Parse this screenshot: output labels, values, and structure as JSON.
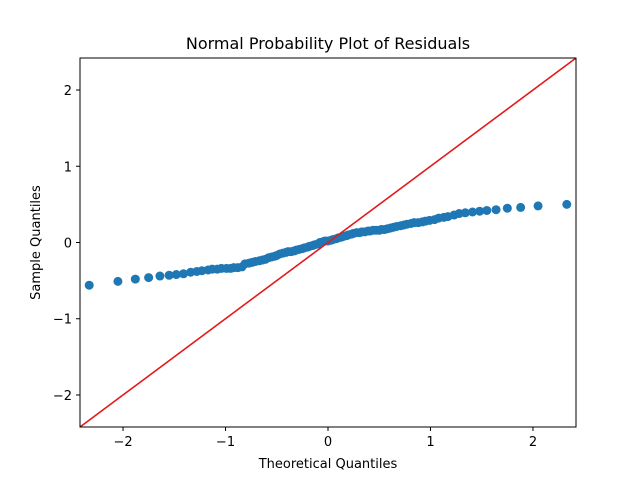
{
  "chart_data": {
    "type": "scatter",
    "title": "Normal Probability Plot of Residuals",
    "xlabel": "Theoretical Quantiles",
    "ylabel": "Sample Quantiles",
    "xlim": [
      -2.42,
      2.42
    ],
    "ylim": [
      -2.42,
      2.42
    ],
    "x_ticks": [
      -2,
      -1,
      0,
      1,
      2
    ],
    "y_ticks": [
      -2,
      -1,
      0,
      1,
      2
    ],
    "x_tick_labels": [
      "−2",
      "−1",
      "0",
      "1",
      "2"
    ],
    "y_tick_labels": [
      "−2",
      "−1",
      "0",
      "1",
      "2"
    ],
    "grid": false,
    "colors": {
      "points": "#1f77b4",
      "reference_line": "#e41a1c"
    },
    "reference_line": {
      "slope": 1,
      "intercept": 0
    },
    "series": [
      {
        "x": [
          -2.33,
          -2.05,
          -1.88,
          -1.75,
          -1.64,
          -1.55,
          -1.48,
          -1.41,
          -1.34,
          -1.28,
          -1.23,
          -1.17,
          -1.13,
          -1.08,
          -1.04,
          -0.99,
          -0.95,
          -0.92,
          -0.88,
          -0.84,
          -0.81,
          -0.77,
          -0.74,
          -0.71,
          -0.67,
          -0.64,
          -0.61,
          -0.58,
          -0.55,
          -0.52,
          -0.5,
          -0.47,
          -0.44,
          -0.41,
          -0.39,
          -0.36,
          -0.33,
          -0.31,
          -0.28,
          -0.25,
          -0.23,
          -0.2,
          -0.18,
          -0.15,
          -0.13,
          -0.1,
          -0.08,
          -0.05,
          -0.03,
          0.0,
          0.03,
          0.05,
          0.08,
          0.1,
          0.13,
          0.15,
          0.18,
          0.2,
          0.23,
          0.25,
          0.28,
          0.31,
          0.33,
          0.36,
          0.39,
          0.41,
          0.44,
          0.47,
          0.5,
          0.52,
          0.55,
          0.58,
          0.61,
          0.64,
          0.67,
          0.71,
          0.74,
          0.77,
          0.81,
          0.84,
          0.88,
          0.92,
          0.95,
          0.99,
          1.04,
          1.08,
          1.13,
          1.17,
          1.23,
          1.28,
          1.34,
          1.41,
          1.48,
          1.55,
          1.64,
          1.75,
          1.88,
          2.05,
          2.33
        ],
        "y": [
          -0.56,
          -0.51,
          -0.48,
          -0.46,
          -0.44,
          -0.43,
          -0.42,
          -0.41,
          -0.39,
          -0.38,
          -0.37,
          -0.36,
          -0.35,
          -0.35,
          -0.34,
          -0.34,
          -0.34,
          -0.33,
          -0.33,
          -0.32,
          -0.28,
          -0.27,
          -0.26,
          -0.25,
          -0.24,
          -0.23,
          -0.22,
          -0.2,
          -0.19,
          -0.18,
          -0.17,
          -0.15,
          -0.14,
          -0.13,
          -0.12,
          -0.12,
          -0.11,
          -0.1,
          -0.09,
          -0.08,
          -0.07,
          -0.06,
          -0.05,
          -0.04,
          -0.03,
          -0.02,
          0.0,
          0.01,
          0.02,
          0.02,
          0.03,
          0.04,
          0.05,
          0.06,
          0.07,
          0.08,
          0.09,
          0.1,
          0.11,
          0.12,
          0.13,
          0.13,
          0.14,
          0.14,
          0.15,
          0.15,
          0.16,
          0.16,
          0.16,
          0.17,
          0.17,
          0.18,
          0.19,
          0.2,
          0.21,
          0.22,
          0.23,
          0.24,
          0.25,
          0.26,
          0.26,
          0.27,
          0.28,
          0.29,
          0.3,
          0.32,
          0.33,
          0.34,
          0.36,
          0.38,
          0.39,
          0.4,
          0.41,
          0.42,
          0.43,
          0.45,
          0.46,
          0.48,
          0.5
        ]
      }
    ]
  }
}
